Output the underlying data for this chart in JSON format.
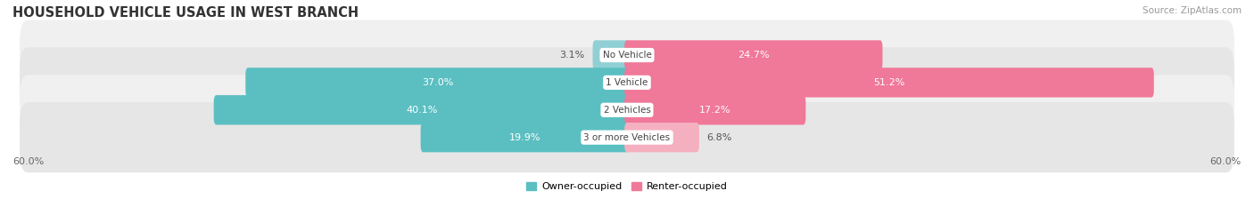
{
  "title": "HOUSEHOLD VEHICLE USAGE IN WEST BRANCH",
  "source": "Source: ZipAtlas.com",
  "categories": [
    "No Vehicle",
    "1 Vehicle",
    "2 Vehicles",
    "3 or more Vehicles"
  ],
  "owner_values": [
    3.1,
    37.0,
    40.1,
    19.9
  ],
  "renter_values": [
    24.7,
    51.2,
    17.2,
    6.8
  ],
  "owner_color": "#5bbfc2",
  "renter_color": "#f07898",
  "owner_color_light": "#90d0d4",
  "renter_color_light": "#f5b0c0",
  "row_bg_colors": [
    "#f0f0f0",
    "#e6e6e6",
    "#f0f0f0",
    "#e6e6e6"
  ],
  "axis_max": 60.0,
  "legend_owner": "Owner-occupied",
  "legend_renter": "Renter-occupied",
  "title_fontsize": 10.5,
  "label_fontsize": 8,
  "tick_fontsize": 8,
  "source_fontsize": 7.5,
  "cat_fontsize": 7.5
}
